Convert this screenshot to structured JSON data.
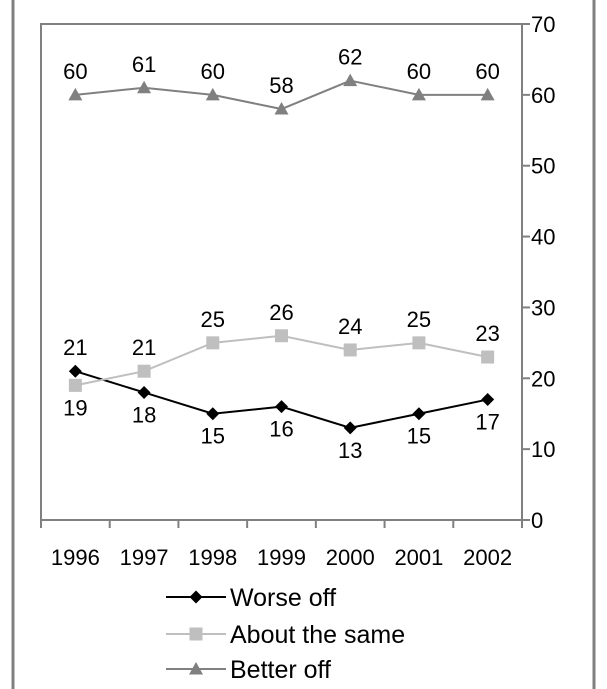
{
  "chart_data": {
    "type": "line",
    "categories": [
      "1996",
      "1997",
      "1998",
      "1999",
      "2000",
      "2001",
      "2002"
    ],
    "ylim": [
      0,
      70
    ],
    "y_ticks": [
      "0",
      "10",
      "20",
      "30",
      "40",
      "50",
      "60",
      "70"
    ],
    "y_axis_side": "right",
    "grid": false,
    "legend_position": "bottom",
    "series": [
      {
        "name": "Worse off",
        "values": [
          21,
          18,
          15,
          16,
          13,
          15,
          17
        ],
        "labels": [
          "21",
          "18",
          "15",
          "16",
          "13",
          "15",
          "17"
        ],
        "color": "#000000",
        "marker": "diamond"
      },
      {
        "name": "About the same",
        "values": [
          19,
          21,
          25,
          26,
          24,
          25,
          23
        ],
        "labels": [
          "19",
          "21",
          "25",
          "26",
          "24",
          "25",
          "23"
        ],
        "color": "#bfbfbf",
        "marker": "square"
      },
      {
        "name": "Better off",
        "values": [
          60,
          61,
          60,
          58,
          62,
          60,
          60
        ],
        "labels": [
          "60",
          "61",
          "60",
          "58",
          "62",
          "60",
          "60"
        ],
        "color": "#808080",
        "marker": "triangle"
      }
    ]
  }
}
